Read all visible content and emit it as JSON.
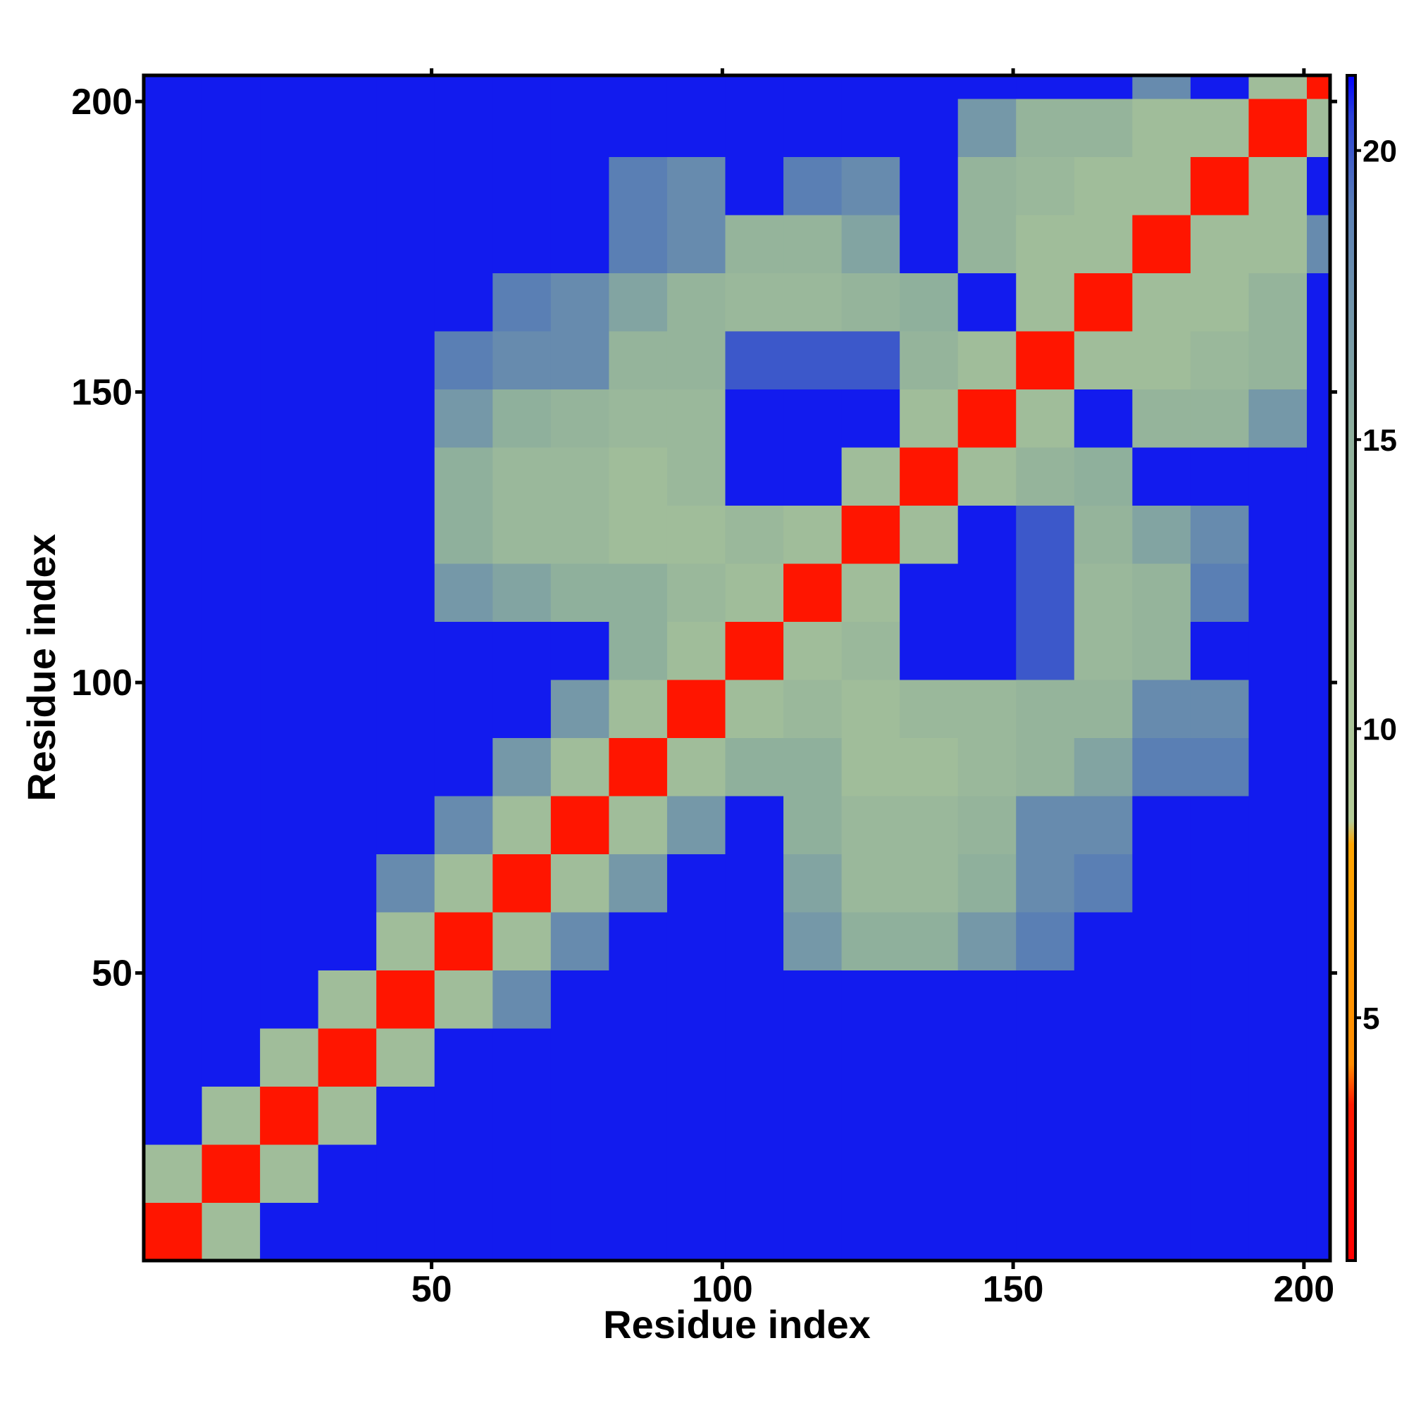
{
  "chart_data": {
    "type": "heatmap",
    "x_label": "Residue index",
    "y_label": "Residue index",
    "edges": [
      0.5,
      10.5,
      20.5,
      30.5,
      40.5,
      50.5,
      60.5,
      70.5,
      80.5,
      90.5,
      100.5,
      110.5,
      120.5,
      130.5,
      140.5,
      150.5,
      160.5,
      170.5,
      180.5,
      190.5,
      200.5,
      204.5
    ],
    "z": [
      [
        3,
        12,
        21,
        21,
        21,
        21,
        21,
        21,
        21,
        21,
        21,
        21,
        21,
        21,
        21,
        21,
        21,
        21,
        21,
        21,
        21
      ],
      [
        12,
        3,
        12,
        21,
        21,
        21,
        21,
        21,
        21,
        21,
        21,
        21,
        21,
        21,
        21,
        21,
        21,
        21,
        21,
        21,
        21
      ],
      [
        21,
        12,
        3,
        12,
        21,
        21,
        21,
        21,
        21,
        21,
        21,
        21,
        21,
        21,
        21,
        21,
        21,
        21,
        21,
        21,
        21
      ],
      [
        21,
        21,
        12,
        3,
        12,
        21,
        21,
        21,
        21,
        21,
        21,
        21,
        21,
        21,
        21,
        21,
        21,
        21,
        21,
        21,
        21
      ],
      [
        21,
        21,
        21,
        12,
        3,
        12,
        18,
        21,
        21,
        21,
        21,
        21,
        21,
        21,
        21,
        21,
        21,
        21,
        21,
        21,
        21
      ],
      [
        21,
        21,
        21,
        21,
        12,
        3,
        12,
        18,
        21,
        21,
        21,
        17,
        15,
        15,
        17,
        19,
        21,
        21,
        21,
        21,
        21
      ],
      [
        21,
        21,
        21,
        21,
        18,
        12,
        3,
        12,
        17,
        21,
        21,
        16,
        13,
        13,
        15,
        18,
        19,
        21,
        21,
        21,
        21
      ],
      [
        21,
        21,
        21,
        21,
        21,
        18,
        12,
        3,
        12,
        17,
        21,
        15,
        13,
        13,
        14,
        18,
        18,
        21,
        21,
        21,
        21
      ],
      [
        21,
        21,
        21,
        21,
        21,
        21,
        17,
        12,
        3,
        12,
        15,
        15,
        12,
        12,
        13,
        14,
        16,
        19,
        19,
        21,
        21
      ],
      [
        21,
        21,
        21,
        21,
        21,
        21,
        21,
        17,
        12,
        3,
        12,
        13,
        12,
        13,
        13,
        14,
        14,
        18,
        18,
        21,
        21
      ],
      [
        21,
        21,
        21,
        21,
        21,
        21,
        21,
        21,
        15,
        12,
        3,
        12,
        13,
        21,
        21,
        20,
        13,
        14,
        21,
        21,
        21
      ],
      [
        21,
        21,
        21,
        21,
        21,
        17,
        16,
        15,
        15,
        13,
        12,
        3,
        12,
        21,
        21,
        20,
        13,
        14,
        19,
        21,
        21
      ],
      [
        21,
        21,
        21,
        21,
        21,
        15,
        13,
        13,
        12,
        12,
        13,
        12,
        3,
        12,
        21,
        20,
        14,
        16,
        18,
        21,
        21
      ],
      [
        21,
        21,
        21,
        21,
        21,
        15,
        13,
        13,
        12,
        13,
        21,
        21,
        12,
        3,
        12,
        14,
        15,
        21,
        21,
        21,
        21
      ],
      [
        21,
        21,
        21,
        21,
        21,
        17,
        15,
        14,
        13,
        13,
        21,
        21,
        21,
        12,
        3,
        12,
        21,
        14,
        14,
        17,
        21
      ],
      [
        21,
        21,
        21,
        21,
        21,
        19,
        18,
        18,
        14,
        14,
        20,
        20,
        20,
        14,
        12,
        3,
        12,
        12,
        13,
        14,
        21
      ],
      [
        21,
        21,
        21,
        21,
        21,
        21,
        19,
        18,
        16,
        14,
        13,
        13,
        14,
        15,
        21,
        12,
        3,
        12,
        12,
        14,
        21
      ],
      [
        21,
        21,
        21,
        21,
        21,
        21,
        21,
        21,
        19,
        18,
        14,
        14,
        16,
        21,
        14,
        12,
        12,
        3,
        12,
        12,
        18
      ],
      [
        21,
        21,
        21,
        21,
        21,
        21,
        21,
        21,
        19,
        18,
        21,
        19,
        18,
        21,
        14,
        13,
        12,
        12,
        3,
        12,
        21
      ],
      [
        21,
        21,
        21,
        21,
        21,
        21,
        21,
        21,
        21,
        21,
        21,
        21,
        21,
        21,
        17,
        14,
        14,
        12,
        12,
        3,
        12
      ],
      [
        21,
        21,
        21,
        21,
        21,
        21,
        21,
        21,
        21,
        21,
        21,
        21,
        21,
        21,
        21,
        21,
        21,
        18,
        21,
        12,
        3
      ]
    ],
    "xlim": [
      0.5,
      204.5
    ],
    "ylim": [
      0.5,
      204.5
    ],
    "xticks": [
      50,
      100,
      150,
      200
    ],
    "yticks": [
      50,
      100,
      150,
      200
    ],
    "clim": [
      0.8,
      21.3
    ],
    "cticks": [
      5,
      10,
      15,
      20
    ],
    "colorscale": [
      [
        0.8,
        "#ff0000"
      ],
      [
        3.5,
        "#ff1a00"
      ],
      [
        4.2,
        "#ff8c00"
      ],
      [
        8.0,
        "#ffa500"
      ],
      [
        8.4,
        "#b4cc98"
      ],
      [
        15,
        "#8fb09c"
      ],
      [
        19,
        "#5a7fb4"
      ],
      [
        20.6,
        "#2a40d8"
      ],
      [
        21.3,
        "#0000ff"
      ]
    ]
  }
}
